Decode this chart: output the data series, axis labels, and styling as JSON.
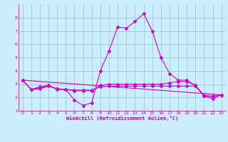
{
  "bg_color": "#cceeff",
  "grid_color": "#99cccc",
  "line_color": "#cc00cc",
  "xlabel": "Windchill (Refroidissement éolien,°C)",
  "xlabel_color": "#aa00aa",
  "tick_color": "#aa00aa",
  "xlim": [
    -0.5,
    23.5
  ],
  "ylim": [
    1,
    9
  ],
  "yticks": [
    1,
    2,
    3,
    4,
    5,
    6,
    7,
    8
  ],
  "xticks": [
    0,
    1,
    2,
    3,
    4,
    5,
    6,
    7,
    8,
    9,
    10,
    11,
    12,
    13,
    14,
    15,
    16,
    17,
    18,
    19,
    20,
    21,
    22,
    23
  ],
  "line1_x": [
    0,
    1,
    2,
    3,
    4,
    5,
    6,
    7,
    8,
    9,
    10,
    11,
    12,
    13,
    14,
    15,
    16,
    17,
    18,
    19,
    20,
    21,
    22,
    23
  ],
  "line1_y": [
    3.3,
    2.6,
    2.8,
    2.9,
    2.6,
    2.6,
    1.8,
    1.4,
    1.6,
    4.0,
    5.5,
    7.3,
    7.2,
    7.7,
    8.3,
    7.0,
    5.0,
    3.8,
    3.3,
    3.3,
    2.9,
    2.1,
    1.9,
    2.2
  ],
  "line2_x": [
    0,
    1,
    2,
    3,
    4,
    5,
    6,
    7,
    8,
    9,
    10,
    11,
    12,
    13,
    14,
    15,
    16,
    17,
    18,
    19,
    20,
    21,
    22,
    23
  ],
  "line2_y": [
    3.3,
    2.6,
    2.7,
    2.9,
    2.65,
    2.6,
    2.5,
    2.5,
    2.5,
    2.9,
    3.0,
    3.0,
    3.0,
    3.0,
    3.0,
    3.0,
    3.0,
    3.1,
    3.2,
    3.2,
    2.9,
    2.15,
    2.1,
    2.2
  ],
  "line3_x": [
    0,
    1,
    2,
    3,
    4,
    5,
    6,
    7,
    8,
    9,
    10,
    11,
    12,
    13,
    14,
    15,
    16,
    17,
    18,
    19,
    20,
    21,
    22,
    23
  ],
  "line3_y": [
    3.3,
    2.6,
    2.65,
    2.85,
    2.65,
    2.6,
    2.55,
    2.55,
    2.55,
    2.8,
    2.85,
    2.85,
    2.85,
    2.85,
    2.85,
    2.85,
    2.85,
    2.85,
    2.85,
    2.85,
    2.85,
    2.1,
    2.05,
    2.2
  ],
  "line4_x": [
    0,
    23
  ],
  "line4_y": [
    3.3,
    2.2
  ]
}
